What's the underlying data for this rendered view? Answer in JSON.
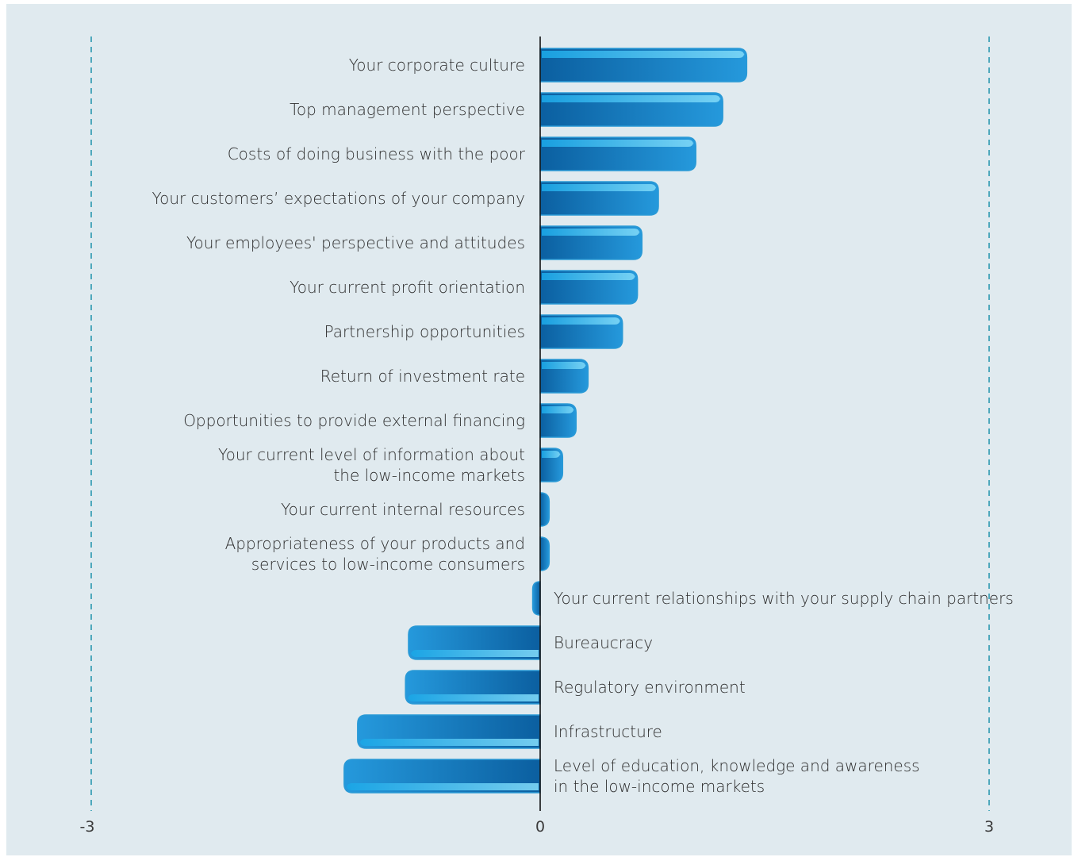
{
  "chart_data": {
    "type": "bar",
    "orientation": "horizontal",
    "title": "",
    "xlabel": "",
    "ylabel": "",
    "xlim": [
      -3,
      3
    ],
    "x_ticks": [
      "-3",
      "0",
      "3"
    ],
    "gridlines": "dashed at -3 and 3",
    "legend": "none",
    "categories": [
      [
        "Your corporate culture"
      ],
      [
        "Top management perspective"
      ],
      [
        "Costs of doing business with the poor"
      ],
      [
        "Your customers’ expectations of your company"
      ],
      [
        "Your employees' perspective and attitudes"
      ],
      [
        "Your current profit orientation"
      ],
      [
        "Partnership opportunities"
      ],
      [
        "Return of investment rate"
      ],
      [
        "Opportunities to provide external financing"
      ],
      [
        "Your current level of information about",
        "the low-income markets"
      ],
      [
        "Your current internal resources"
      ],
      [
        "Appropriateness of your products and",
        "services to low-income consumers"
      ],
      [
        "Your current relationships with your supply chain partners"
      ],
      [
        "Bureaucracy"
      ],
      [
        "Regulatory environment"
      ],
      [
        "Infrastructure"
      ],
      [
        "Level of education, knowledge and awareness",
        "in the low-income markets"
      ]
    ],
    "values": [
      1.38,
      1.22,
      1.04,
      0.79,
      0.68,
      0.65,
      0.55,
      0.32,
      0.24,
      0.15,
      0.06,
      0.06,
      -0.05,
      -0.88,
      -0.9,
      -1.22,
      -1.31
    ],
    "colors": {
      "bar_dark": "#0b5fa0",
      "bar_mid": "#1a8fd0",
      "bar_light": "#5ccaf2",
      "bar_edge": "#2a9ad6",
      "axis": "#111111",
      "grid": "#2a98b0",
      "background": "#e0eaef"
    }
  }
}
